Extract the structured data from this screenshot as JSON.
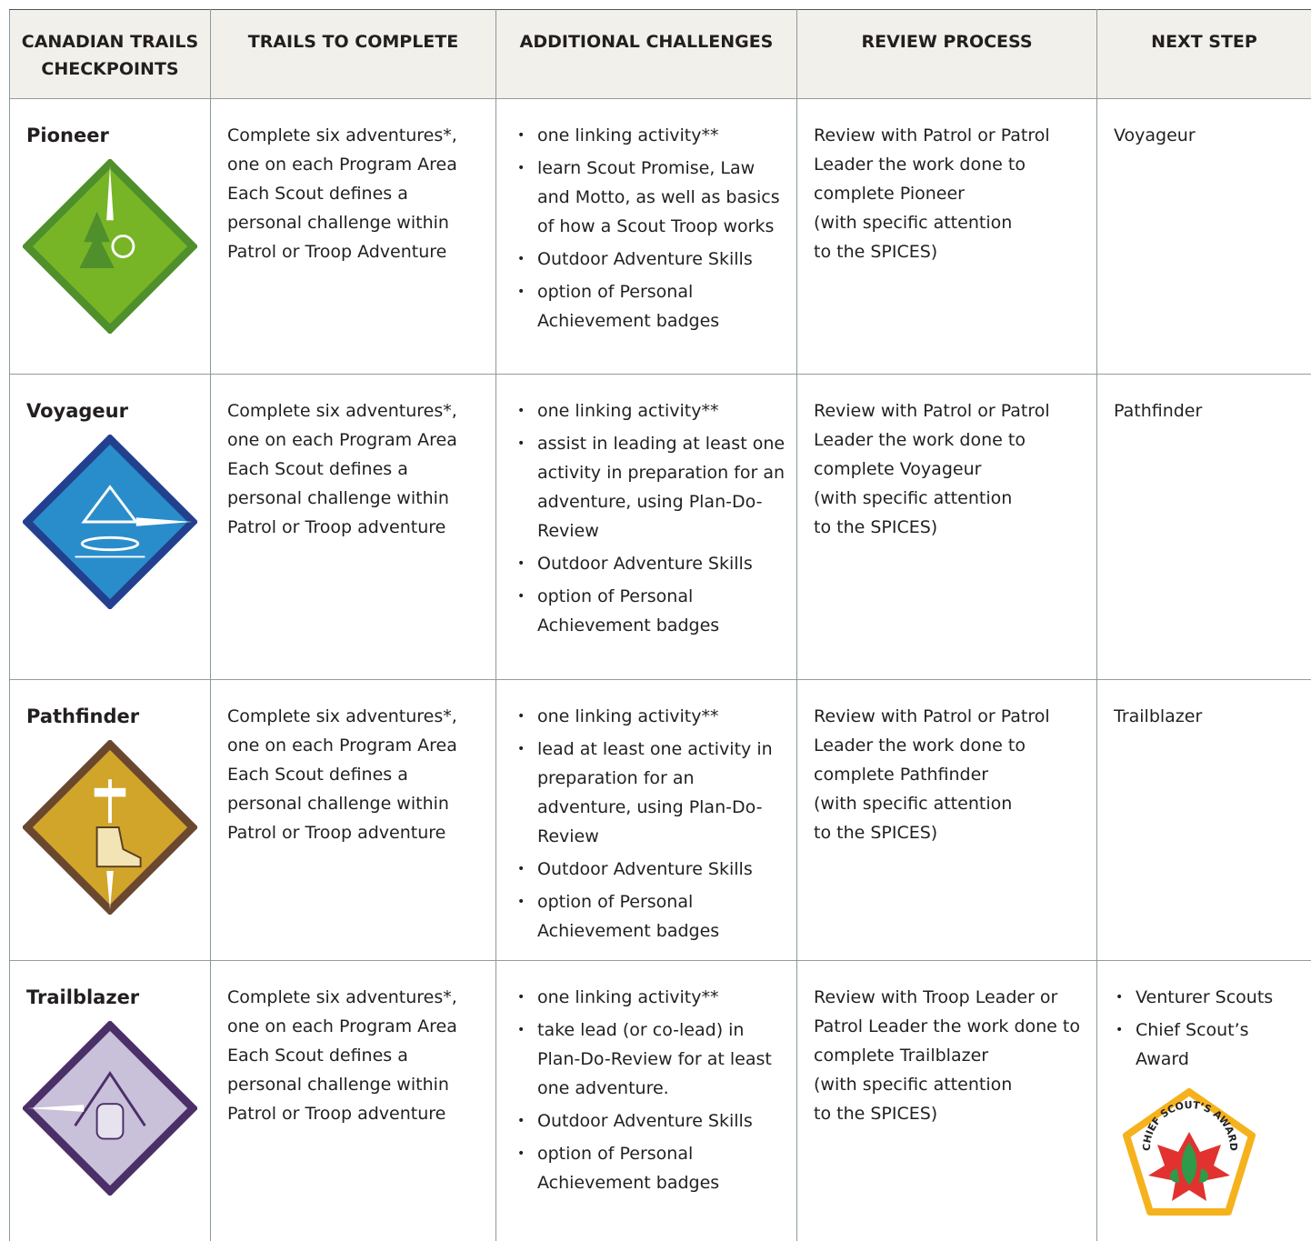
{
  "header": [
    "CANADIAN TRAILS CHECKPOINTS",
    "TRAILS TO COMPLETE",
    "ADDITIONAL CHALLENGES",
    "REVIEW PROCESS",
    "NEXT STEP"
  ],
  "rows": [
    {
      "checkpoint": "Pioneer",
      "trails": [
        "Complete six adventures*, one on each Program Area",
        "Each Scout defines a personal challenge within Patrol or Troop Adventure"
      ],
      "challenges": [
        "one linking activity**",
        "learn Scout Promise, Law and Motto, as well as basics of how a Scout Troop works",
        "Outdoor Adventure Skills",
        "option of Personal Achievement badges"
      ],
      "review": [
        "Review with Patrol or Patrol Leader the work done to complete Pioneer",
        "(with specific attention to the SPICES)"
      ],
      "next": "Voyageur"
    },
    {
      "checkpoint": "Voyageur",
      "trails": [
        "Complete six adventures*, one on each Program Area",
        "Each Scout defines a personal challenge within Patrol or Troop adventure"
      ],
      "challenges": [
        "one linking activity**",
        "assist in leading at least one activity in preparation for an adventure, using Plan-Do-Review",
        "Outdoor Adventure Skills",
        "option of Personal Achievement badges"
      ],
      "review": [
        "Review with Patrol or Patrol Leader the work done to complete Voyageur",
        "(with specific attention to the SPICES)"
      ],
      "next": "Pathfinder"
    },
    {
      "checkpoint": "Pathfinder",
      "trails": [
        "Complete six adventures*, one on each Program Area",
        "Each Scout defines a personal challenge within Patrol or Troop adventure"
      ],
      "challenges": [
        "one linking activity**",
        "lead at least one activity in preparation for an adventure, using Plan-Do-Review",
        "Outdoor Adventure Skills",
        "option of Personal Achievement badges"
      ],
      "review": [
        "Review with Patrol or Patrol Leader the work done to complete Pathfinder",
        "(with specific attention to the SPICES)"
      ],
      "next": "Trailblazer"
    },
    {
      "checkpoint": "Trailblazer",
      "trails": [
        "Complete six adventures*, one on each Program Area",
        "Each Scout defines a personal challenge within Patrol or Troop adventure"
      ],
      "challenges": [
        "one linking activity**",
        "take lead (or co-lead) in Plan-Do-Review for at least one adventure.",
        "Outdoor Adventure Skills",
        "option of Personal Achievement badges"
      ],
      "review": [
        "Review with Troop Leader or Patrol Leader the work done to complete Trailblazer",
        "(with specific attention to the SPICES)"
      ],
      "next": [
        "Venturer Scouts",
        "Chief Scout’s Award"
      ],
      "award_badge_text": "CHIEF SCOUT’S AWARD"
    }
  ]
}
